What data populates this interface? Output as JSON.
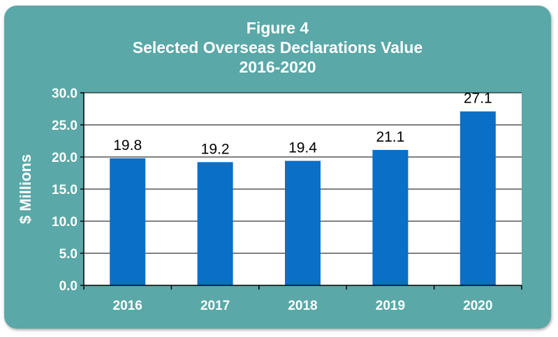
{
  "chart_data": {
    "type": "bar",
    "title_lines": [
      "Figure 4",
      "Selected Overseas Declarations Value",
      "2016-2020"
    ],
    "categories": [
      "2016",
      "2017",
      "2018",
      "2019",
      "2020"
    ],
    "values": [
      19.8,
      19.2,
      19.4,
      21.1,
      27.1
    ],
    "value_labels": [
      "19.8",
      "19.2",
      "19.4",
      "21.1",
      "27.1"
    ],
    "ylabel": "$ Millions",
    "ylim": [
      0,
      30
    ],
    "yticks": [
      "0.0",
      "5.0",
      "10.0",
      "15.0",
      "20.0",
      "25.0",
      "30.0"
    ],
    "ytick_values": [
      0,
      5,
      10,
      15,
      20,
      25,
      30
    ],
    "grid": true,
    "colors": {
      "bar": "#0a6fc7",
      "frame": "#5aa8a8",
      "plot_background": "#ffffff"
    }
  }
}
